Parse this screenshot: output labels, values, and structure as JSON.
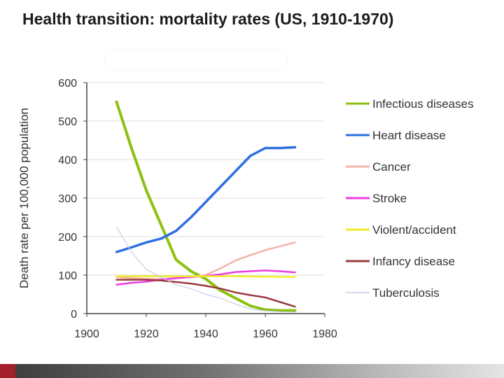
{
  "slide": {
    "title": "Health transition: mortality rates (US, 1910-1970)"
  },
  "chart_data": {
    "type": "line",
    "title": "",
    "xlabel": "",
    "ylabel": "Death rate per 100,000 population",
    "xlim": [
      1900,
      1980
    ],
    "ylim": [
      0,
      600
    ],
    "x_ticks": [
      1900,
      1920,
      1940,
      1960,
      1980
    ],
    "y_ticks": [
      0,
      100,
      200,
      300,
      400,
      500,
      600
    ],
    "legend_position": "right",
    "series": [
      {
        "name": "Infectious diseases",
        "color": "#8cc10f",
        "x": [
          1910,
          1915,
          1920,
          1925,
          1930,
          1935,
          1940,
          1945,
          1950,
          1955,
          1960,
          1965,
          1970
        ],
        "y": [
          550,
          430,
          320,
          230,
          140,
          110,
          90,
          60,
          40,
          20,
          10,
          8,
          8
        ]
      },
      {
        "name": "Heart disease",
        "color": "#2e6fe0",
        "x": [
          1910,
          1915,
          1920,
          1925,
          1930,
          1935,
          1940,
          1945,
          1950,
          1955,
          1960,
          1965,
          1970
        ],
        "y": [
          160,
          172,
          185,
          195,
          215,
          250,
          290,
          330,
          370,
          410,
          430,
          430,
          432
        ]
      },
      {
        "name": "Cancer",
        "color": "#f2b3ad",
        "x": [
          1910,
          1915,
          1920,
          1925,
          1930,
          1935,
          1940,
          1945,
          1950,
          1955,
          1960,
          1965,
          1970
        ],
        "y": [
          95,
          92,
          90,
          90,
          92,
          95,
          100,
          118,
          138,
          152,
          165,
          175,
          185
        ]
      },
      {
        "name": "Stroke",
        "color": "#ee3ce0",
        "x": [
          1910,
          1915,
          1920,
          1925,
          1930,
          1935,
          1940,
          1945,
          1950,
          1955,
          1960,
          1965,
          1970
        ],
        "y": [
          75,
          80,
          83,
          88,
          92,
          95,
          98,
          102,
          108,
          110,
          112,
          110,
          107
        ]
      },
      {
        "name": "Violent/accident",
        "color": "#f2ec2a",
        "x": [
          1910,
          1920,
          1930,
          1940,
          1950,
          1960,
          1970
        ],
        "y": [
          97,
          97,
          97,
          97,
          97,
          96,
          95
        ]
      },
      {
        "name": "Infancy disease",
        "color": "#9a3b3f",
        "x": [
          1910,
          1915,
          1920,
          1925,
          1930,
          1935,
          1940,
          1945,
          1950,
          1955,
          1960,
          1965,
          1970
        ],
        "y": [
          88,
          88,
          88,
          86,
          82,
          78,
          72,
          65,
          55,
          48,
          42,
          30,
          18
        ]
      },
      {
        "name": "Tuberculosis",
        "color": "#c6cde8",
        "x": [
          1910,
          1915,
          1920,
          1925,
          1930,
          1935,
          1940,
          1945,
          1950,
          1955,
          1960,
          1965,
          1970
        ],
        "y": [
          225,
          160,
          115,
          95,
          75,
          65,
          50,
          40,
          25,
          12,
          7,
          5,
          4
        ]
      }
    ]
  }
}
